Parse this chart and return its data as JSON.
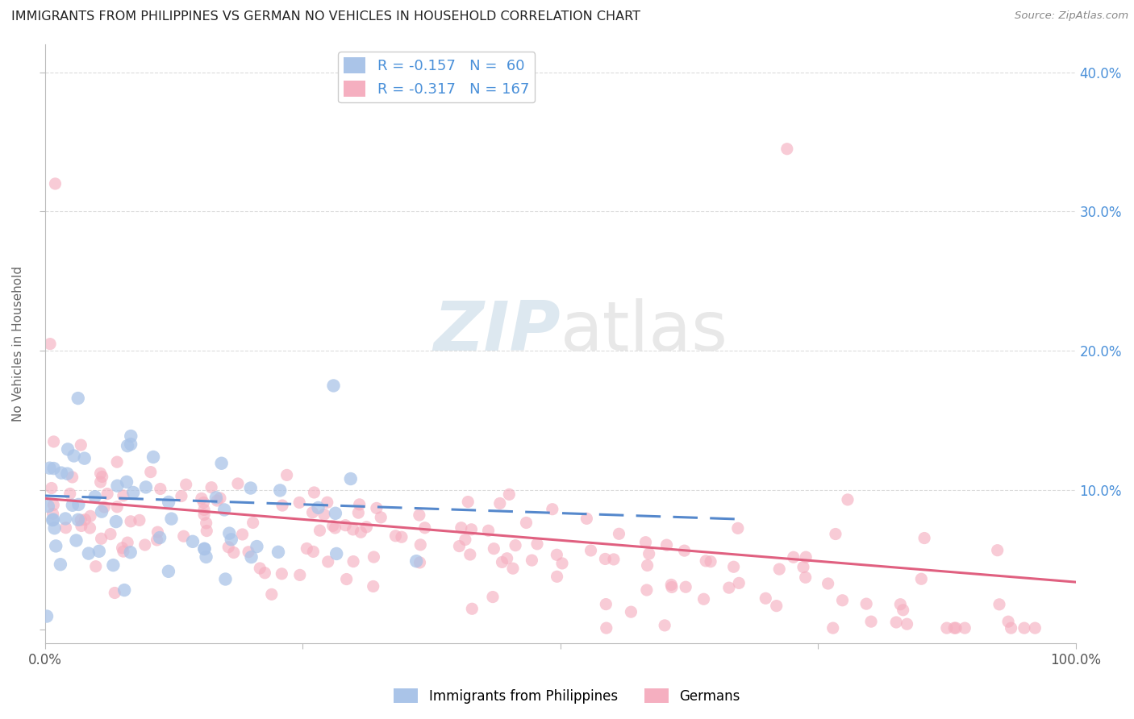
{
  "title": "IMMIGRANTS FROM PHILIPPINES VS GERMAN NO VEHICLES IN HOUSEHOLD CORRELATION CHART",
  "source": "Source: ZipAtlas.com",
  "ylabel": "No Vehicles in Household",
  "xlim": [
    0,
    1.0
  ],
  "ylim": [
    -0.01,
    0.42
  ],
  "legend_entries": [
    {
      "label": "R = -0.157   N =  60",
      "color": "#aac4e8"
    },
    {
      "label": "R = -0.317   N = 167",
      "color": "#f5afc0"
    }
  ],
  "bottom_legend": [
    {
      "label": "Immigrants from Philippines",
      "color": "#aac4e8"
    },
    {
      "label": "Germans",
      "color": "#f5afc0"
    }
  ],
  "philippines_color": "#aac4e8",
  "german_color": "#f5afc0",
  "philippines_line_color": "#5588cc",
  "german_line_color": "#e06080",
  "watermark_color": "#dde8f0",
  "background_color": "#ffffff",
  "grid_color": "#cccccc",
  "title_color": "#222222",
  "right_ytick_color": "#4a90d9",
  "legend_text_color": "#4a90d9",
  "philippines_R": -0.157,
  "philippines_N": 60,
  "german_R": -0.317,
  "german_N": 167
}
